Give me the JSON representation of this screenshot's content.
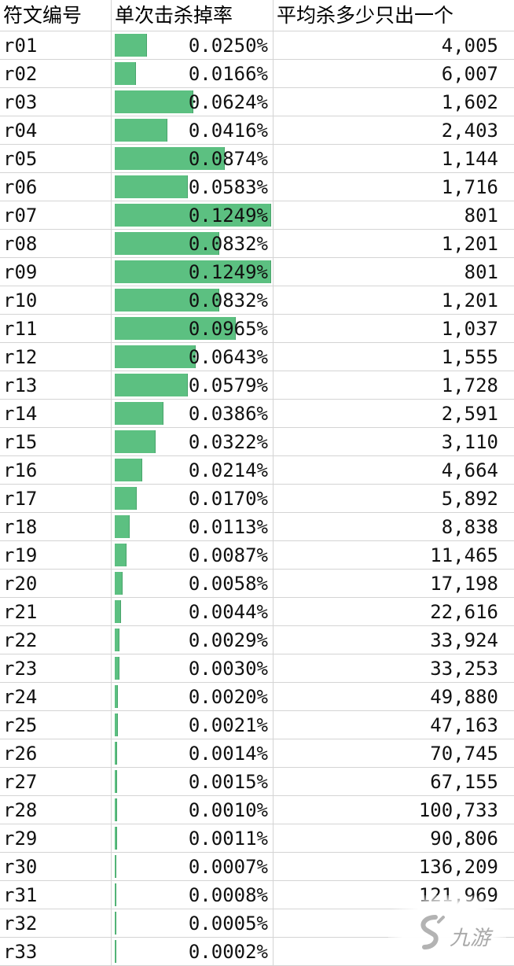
{
  "table": {
    "headers": [
      "符文编号",
      "单次击杀掉率",
      "平均杀多少只出一个"
    ],
    "rows": [
      {
        "id": "r01",
        "rate": "0.0250%",
        "count": "4,005"
      },
      {
        "id": "r02",
        "rate": "0.0166%",
        "count": "6,007"
      },
      {
        "id": "r03",
        "rate": "0.0624%",
        "count": "1,602"
      },
      {
        "id": "r04",
        "rate": "0.0416%",
        "count": "2,403"
      },
      {
        "id": "r05",
        "rate": "0.0874%",
        "count": "1,144"
      },
      {
        "id": "r06",
        "rate": "0.0583%",
        "count": "1,716"
      },
      {
        "id": "r07",
        "rate": "0.1249%",
        "count": "801"
      },
      {
        "id": "r08",
        "rate": "0.0832%",
        "count": "1,201"
      },
      {
        "id": "r09",
        "rate": "0.1249%",
        "count": "801"
      },
      {
        "id": "r10",
        "rate": "0.0832%",
        "count": "1,201"
      },
      {
        "id": "r11",
        "rate": "0.0965%",
        "count": "1,037"
      },
      {
        "id": "r12",
        "rate": "0.0643%",
        "count": "1,555"
      },
      {
        "id": "r13",
        "rate": "0.0579%",
        "count": "1,728"
      },
      {
        "id": "r14",
        "rate": "0.0386%",
        "count": "2,591"
      },
      {
        "id": "r15",
        "rate": "0.0322%",
        "count": "3,110"
      },
      {
        "id": "r16",
        "rate": "0.0214%",
        "count": "4,664"
      },
      {
        "id": "r17",
        "rate": "0.0170%",
        "count": "5,892"
      },
      {
        "id": "r18",
        "rate": "0.0113%",
        "count": "8,838"
      },
      {
        "id": "r19",
        "rate": "0.0087%",
        "count": "11,465"
      },
      {
        "id": "r20",
        "rate": "0.0058%",
        "count": "17,198"
      },
      {
        "id": "r21",
        "rate": "0.0044%",
        "count": "22,616"
      },
      {
        "id": "r22",
        "rate": "0.0029%",
        "count": "33,924"
      },
      {
        "id": "r23",
        "rate": "0.0030%",
        "count": "33,253"
      },
      {
        "id": "r24",
        "rate": "0.0020%",
        "count": "49,880"
      },
      {
        "id": "r25",
        "rate": "0.0021%",
        "count": "47,163"
      },
      {
        "id": "r26",
        "rate": "0.0014%",
        "count": "70,745"
      },
      {
        "id": "r27",
        "rate": "0.0015%",
        "count": "67,155"
      },
      {
        "id": "r28",
        "rate": "0.0010%",
        "count": "100,733"
      },
      {
        "id": "r29",
        "rate": "0.0011%",
        "count": "90,806"
      },
      {
        "id": "r30",
        "rate": "0.0007%",
        "count": "136,209"
      },
      {
        "id": "r31",
        "rate": "0.0008%",
        "count": "121,969"
      },
      {
        "id": "r32",
        "rate": "0.0005%",
        "count": ""
      },
      {
        "id": "r33",
        "rate": "0.0002%",
        "count": ""
      }
    ],
    "bar_max_rate": 0.1249,
    "bar_color": "#5cc081"
  },
  "watermark": {
    "text": "九游",
    "icon": "jiuyou-logo-icon"
  }
}
